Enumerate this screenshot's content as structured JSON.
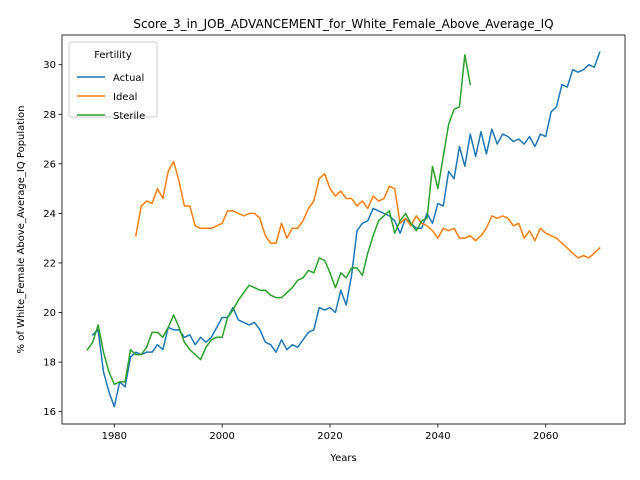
{
  "chart_data": {
    "type": "line",
    "title": "Score_3_in_JOB_ADVANCEMENT_for_White_Female_Above_Average_IQ",
    "xlabel": "Years",
    "ylabel": "% of White_Female Above_Average_IQ Population",
    "xlim": [
      1970.3,
      2074.7
    ],
    "ylim": [
      15.5,
      31.2
    ],
    "xticks": [
      1980,
      2000,
      2020,
      2040,
      2060
    ],
    "yticks": [
      16,
      18,
      20,
      22,
      24,
      26,
      28,
      30
    ],
    "grid": false,
    "legend": {
      "title": "Fertility",
      "location": "upper left"
    },
    "series": [
      {
        "name": "Actual",
        "color": "#1f77b4",
        "x": [
          1976,
          1977,
          1978,
          1979,
          1980,
          1981,
          1982,
          1983,
          1984,
          1985,
          1986,
          1987,
          1988,
          1989,
          1990,
          1991,
          1992,
          1993,
          1994,
          1995,
          1996,
          1997,
          1998,
          1999,
          2000,
          2001,
          2002,
          2003,
          2004,
          2005,
          2006,
          2007,
          2008,
          2009,
          2010,
          2011,
          2012,
          2013,
          2014,
          2015,
          2016,
          2017,
          2018,
          2019,
          2020,
          2021,
          2022,
          2023,
          2024,
          2025,
          2026,
          2027,
          2028,
          2029,
          2030,
          2031,
          2032,
          2033,
          2034,
          2035,
          2036,
          2037,
          2038,
          2039,
          2040,
          2041,
          2042,
          2043,
          2044,
          2045,
          2046,
          2047,
          2048,
          2049,
          2050,
          2051,
          2052,
          2053,
          2054,
          2055,
          2056,
          2057,
          2058,
          2059,
          2060,
          2061,
          2062,
          2063,
          2064,
          2065,
          2066,
          2067,
          2068,
          2069,
          2070
        ],
        "values": [
          19.1,
          19.3,
          17.6,
          16.8,
          16.2,
          17.2,
          17.0,
          18.2,
          18.4,
          18.3,
          18.4,
          18.4,
          18.7,
          18.5,
          19.4,
          19.3,
          19.3,
          19.0,
          19.1,
          18.7,
          19.0,
          18.8,
          19.0,
          19.4,
          19.8,
          19.8,
          20.2,
          19.7,
          19.6,
          19.5,
          19.6,
          19.3,
          18.8,
          18.7,
          18.4,
          18.9,
          18.5,
          18.7,
          18.6,
          18.9,
          19.2,
          19.3,
          20.2,
          20.1,
          20.2,
          20.0,
          20.9,
          20.3,
          21.5,
          23.3,
          23.6,
          23.7,
          24.2,
          24.1,
          24.0,
          23.9,
          23.7,
          23.2,
          23.8,
          23.6,
          23.4,
          23.4,
          24.0,
          23.6,
          24.4,
          24.3,
          25.7,
          25.4,
          26.7,
          25.9,
          27.2,
          26.3,
          27.3,
          26.4,
          27.4,
          26.8,
          27.2,
          27.1,
          26.9,
          27.0,
          26.8,
          27.1,
          26.7,
          27.2,
          27.1,
          28.1,
          28.3,
          29.2,
          29.1,
          29.8,
          29.7,
          29.8,
          30.0,
          29.9,
          30.5
        ]
      },
      {
        "name": "Ideal",
        "color": "#ff7f0e",
        "x": [
          1984,
          1985,
          1986,
          1987,
          1988,
          1989,
          1990,
          1991,
          1992,
          1993,
          1994,
          1995,
          1996,
          1997,
          1998,
          1999,
          2000,
          2001,
          2002,
          2003,
          2004,
          2005,
          2006,
          2007,
          2008,
          2009,
          2010,
          2011,
          2012,
          2013,
          2014,
          2015,
          2016,
          2017,
          2018,
          2019,
          2020,
          2021,
          2022,
          2023,
          2024,
          2025,
          2026,
          2027,
          2028,
          2029,
          2030,
          2031,
          2032,
          2033,
          2034,
          2035,
          2036,
          2037,
          2038,
          2039,
          2040,
          2041,
          2042,
          2043,
          2044,
          2045,
          2046,
          2047,
          2048,
          2049,
          2050,
          2051,
          2052,
          2053,
          2054,
          2055,
          2056,
          2057,
          2058,
          2059,
          2060,
          2061,
          2062,
          2063,
          2064,
          2065,
          2066,
          2067,
          2068,
          2069,
          2070
        ],
        "values": [
          23.1,
          24.3,
          24.5,
          24.4,
          25.0,
          24.6,
          25.7,
          26.1,
          25.3,
          24.3,
          24.3,
          23.5,
          23.4,
          23.4,
          23.4,
          23.5,
          23.6,
          24.1,
          24.1,
          24.0,
          23.9,
          24.0,
          24.0,
          23.8,
          23.1,
          22.8,
          22.8,
          23.6,
          23.0,
          23.4,
          23.4,
          23.7,
          24.2,
          24.5,
          25.4,
          25.6,
          25.0,
          24.7,
          24.9,
          24.6,
          24.6,
          24.3,
          24.5,
          24.2,
          24.7,
          24.5,
          24.6,
          25.1,
          25.0,
          23.6,
          23.8,
          23.5,
          23.9,
          23.6,
          23.5,
          23.3,
          23.0,
          23.4,
          23.3,
          23.4,
          23.0,
          23.0,
          23.1,
          22.9,
          23.1,
          23.4,
          23.9,
          23.8,
          23.9,
          23.8,
          23.5,
          23.6,
          23.0,
          23.3,
          22.9,
          23.4,
          23.2,
          23.1,
          23.0,
          22.8,
          22.6,
          22.4,
          22.2,
          22.3,
          22.2,
          22.4,
          22.6
        ]
      },
      {
        "name": "Sterile",
        "color": "#2ca02c",
        "x": [
          1975,
          1976,
          1977,
          1978,
          1979,
          1980,
          1981,
          1982,
          1983,
          1984,
          1985,
          1986,
          1987,
          1988,
          1989,
          1990,
          1991,
          1992,
          1993,
          1994,
          1995,
          1996,
          1997,
          1998,
          1999,
          2000,
          2001,
          2002,
          2003,
          2004,
          2005,
          2006,
          2007,
          2008,
          2009,
          2010,
          2011,
          2012,
          2013,
          2014,
          2015,
          2016,
          2017,
          2018,
          2019,
          2020,
          2021,
          2022,
          2023,
          2024,
          2025,
          2026,
          2027,
          2028,
          2029,
          2030,
          2031,
          2032,
          2033,
          2034,
          2035,
          2036,
          2037,
          2038,
          2039,
          2040,
          2041,
          2042,
          2043,
          2044,
          2045,
          2046
        ],
        "values": [
          18.5,
          18.8,
          19.5,
          18.4,
          17.6,
          17.1,
          17.2,
          17.2,
          18.5,
          18.3,
          18.3,
          18.6,
          19.2,
          19.2,
          19.0,
          19.4,
          19.9,
          19.4,
          18.8,
          18.5,
          18.3,
          18.1,
          18.6,
          18.9,
          19.0,
          19.0,
          19.8,
          20.1,
          20.5,
          20.8,
          21.1,
          21.0,
          20.9,
          20.9,
          20.7,
          20.6,
          20.6,
          20.8,
          21.0,
          21.3,
          21.4,
          21.7,
          21.6,
          22.2,
          22.1,
          21.6,
          21.0,
          21.6,
          21.4,
          21.8,
          21.8,
          21.5,
          22.4,
          23.1,
          23.7,
          23.9,
          24.1,
          23.2,
          23.7,
          24.0,
          23.6,
          23.3,
          23.7,
          23.8,
          25.9,
          25.0,
          26.3,
          27.6,
          28.2,
          28.3,
          30.4,
          29.2
        ]
      }
    ]
  }
}
